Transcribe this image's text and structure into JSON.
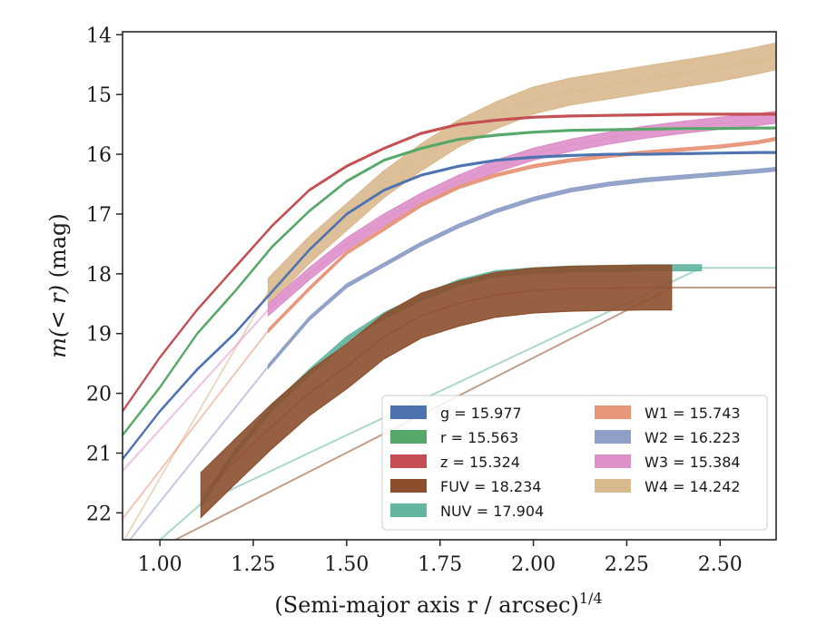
{
  "chart_data": {
    "type": "line",
    "xlabel": "(Semi-major axis r / arcsec)",
    "xlabel_exp": "1/4",
    "ylabel_main": "m(< r)",
    "ylabel_unit": " (mag)",
    "xlim": [
      0.9,
      2.65
    ],
    "ylim": [
      22.45,
      13.95
    ],
    "y_inverted": true,
    "grid": false,
    "legend_placement": "lower-right",
    "x_ticks": [
      1.0,
      1.25,
      1.5,
      1.75,
      2.0,
      2.25,
      2.5
    ],
    "x_tick_labels": [
      "1.00",
      "1.25",
      "1.50",
      "1.75",
      "2.00",
      "2.25",
      "2.50"
    ],
    "y_ticks": [
      14,
      15,
      16,
      17,
      18,
      19,
      20,
      21,
      22
    ],
    "y_tick_labels": [
      "14",
      "15",
      "16",
      "17",
      "18",
      "19",
      "20",
      "21",
      "22"
    ],
    "series": [
      {
        "name": "g",
        "legend": "g = 15.977",
        "color": "#4c72b0",
        "width": 0.03,
        "x": [
          0.9,
          1.0,
          1.1,
          1.2,
          1.3,
          1.4,
          1.5,
          1.6,
          1.7,
          1.8,
          1.9,
          2.0,
          2.1,
          2.2,
          2.3,
          2.4,
          2.5,
          2.6,
          2.65
        ],
        "y": [
          21.1,
          20.3,
          19.6,
          19.0,
          18.3,
          17.6,
          17.0,
          16.6,
          16.35,
          16.2,
          16.1,
          16.05,
          16.02,
          16.0,
          16.0,
          15.99,
          15.98,
          15.97,
          15.97
        ]
      },
      {
        "name": "r",
        "legend": "r = 15.563",
        "color": "#55a868",
        "width": 0.03,
        "x": [
          0.9,
          1.0,
          1.1,
          1.2,
          1.3,
          1.4,
          1.5,
          1.6,
          1.7,
          1.8,
          1.9,
          2.0,
          2.1,
          2.2,
          2.3,
          2.4,
          2.5,
          2.6,
          2.65
        ],
        "y": [
          20.7,
          19.9,
          19.0,
          18.3,
          17.55,
          16.95,
          16.45,
          16.1,
          15.9,
          15.75,
          15.68,
          15.63,
          15.6,
          15.59,
          15.58,
          15.57,
          15.57,
          15.56,
          15.56
        ]
      },
      {
        "name": "z",
        "legend": "z = 15.324",
        "color": "#c44e52",
        "width": 0.03,
        "x": [
          0.9,
          1.0,
          1.1,
          1.2,
          1.3,
          1.4,
          1.5,
          1.6,
          1.7,
          1.8,
          1.9,
          2.0,
          2.1,
          2.2,
          2.3,
          2.4,
          2.5,
          2.6,
          2.65
        ],
        "y": [
          20.3,
          19.4,
          18.6,
          17.9,
          17.2,
          16.6,
          16.2,
          15.9,
          15.65,
          15.5,
          15.43,
          15.38,
          15.36,
          15.35,
          15.34,
          15.33,
          15.33,
          15.33,
          15.33
        ]
      },
      {
        "name": "FUV",
        "legend": "FUV = 18.234",
        "color": "#8c4f2e",
        "width": 0.75,
        "x": [
          1.11,
          1.2,
          1.3,
          1.4,
          1.5,
          1.6,
          1.7,
          1.8,
          1.9,
          2.0,
          2.1,
          2.2,
          2.3,
          2.37
        ],
        "y": [
          21.7,
          21.15,
          20.55,
          20.0,
          19.55,
          19.05,
          18.7,
          18.5,
          18.35,
          18.28,
          18.25,
          18.24,
          18.23,
          18.23
        ],
        "tail_x": [
          0.9,
          2.37,
          2.65
        ],
        "tail_y": [
          22.9,
          18.23,
          18.23
        ]
      },
      {
        "name": "NUV",
        "legend": "NUV = 17.904",
        "color": "#64b5a0",
        "width": 0.1,
        "x": [
          1.11,
          1.2,
          1.3,
          1.4,
          1.5,
          1.6,
          1.7,
          1.8,
          1.9,
          2.0,
          2.1,
          2.2,
          2.3,
          2.45
        ],
        "y": [
          21.85,
          21.0,
          20.25,
          19.65,
          19.1,
          18.7,
          18.4,
          18.15,
          18.0,
          17.95,
          17.92,
          17.91,
          17.9,
          17.9
        ],
        "tail_x": [
          0.9,
          1.11,
          2.45,
          2.65
        ],
        "tail_y": [
          23.0,
          21.85,
          17.9,
          17.9
        ]
      },
      {
        "name": "W1",
        "legend": "W1 = 15.743",
        "color": "#e8967a",
        "width": 0.05,
        "x": [
          1.29,
          1.4,
          1.5,
          1.6,
          1.7,
          1.8,
          1.9,
          2.0,
          2.1,
          2.2,
          2.3,
          2.4,
          2.5,
          2.6,
          2.65
        ],
        "y": [
          18.95,
          18.25,
          17.65,
          17.25,
          16.85,
          16.55,
          16.35,
          16.2,
          16.1,
          16.03,
          15.97,
          15.92,
          15.87,
          15.8,
          15.74
        ],
        "tail_x": [
          0.9,
          1.29
        ],
        "tail_y": [
          22.1,
          18.95
        ]
      },
      {
        "name": "W2",
        "legend": "W2 = 16.223",
        "color": "#8f9fc8",
        "width": 0.06,
        "x": [
          1.29,
          1.4,
          1.5,
          1.6,
          1.7,
          1.8,
          1.9,
          2.0,
          2.1,
          2.2,
          2.3,
          2.4,
          2.5,
          2.6,
          2.65
        ],
        "y": [
          19.55,
          18.75,
          18.2,
          17.85,
          17.5,
          17.2,
          16.95,
          16.75,
          16.6,
          16.5,
          16.43,
          16.38,
          16.33,
          16.28,
          16.25
        ],
        "tail_x": [
          0.9,
          1.29
        ],
        "tail_y": [
          22.6,
          19.55
        ]
      },
      {
        "name": "W3",
        "legend": "W3 = 15.384",
        "color": "#dd8fc8",
        "width": 0.2,
        "x": [
          1.29,
          1.4,
          1.5,
          1.6,
          1.7,
          1.8,
          1.9,
          2.0,
          2.1,
          2.2,
          2.3,
          2.4,
          2.5,
          2.6,
          2.65
        ],
        "y": [
          18.6,
          18.0,
          17.5,
          17.1,
          16.75,
          16.45,
          16.2,
          16.0,
          15.85,
          15.73,
          15.63,
          15.55,
          15.48,
          15.42,
          15.38
        ],
        "tail_x": [
          0.9,
          1.29
        ],
        "tail_y": [
          21.3,
          18.6
        ]
      },
      {
        "name": "W4",
        "legend": "W4 = 14.242",
        "color": "#d9b98e",
        "width": 0.45,
        "x": [
          1.29,
          1.4,
          1.5,
          1.6,
          1.7,
          1.8,
          1.9,
          2.0,
          2.1,
          2.2,
          2.3,
          2.4,
          2.5,
          2.6,
          2.65
        ],
        "y": [
          18.3,
          17.6,
          17.05,
          16.5,
          16.05,
          15.65,
          15.35,
          15.1,
          14.95,
          14.85,
          14.75,
          14.65,
          14.55,
          14.43,
          14.36
        ],
        "width_end": 0.45,
        "tail_x": [
          0.9,
          1.29
        ],
        "tail_y": [
          22.5,
          18.3
        ]
      }
    ]
  }
}
